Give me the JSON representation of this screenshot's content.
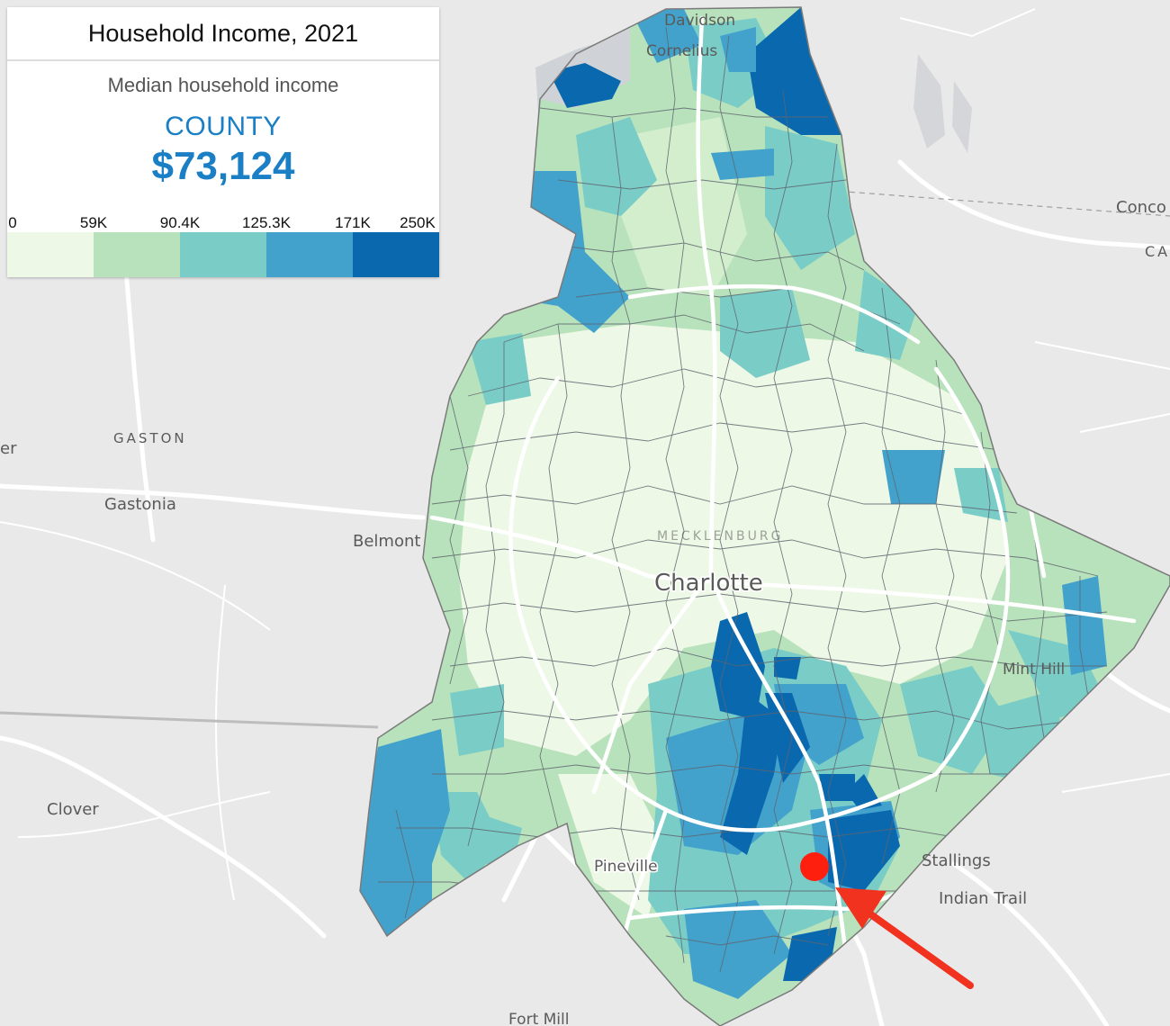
{
  "legend": {
    "title": "Household Income, 2021",
    "subtitle": "Median household income",
    "region": "COUNTY",
    "value": "$73,124",
    "scale_labels": [
      "0",
      "59K",
      "90.4K",
      "125.3K",
      "171K",
      "250K"
    ],
    "scale_colors": [
      "#eef8e6",
      "#b8e2bb",
      "#7accc7",
      "#42a2cc",
      "#0a68ae"
    ]
  },
  "colors": {
    "background": "#e9e9ea",
    "county_border": "#7a7a7a",
    "tract_line": "#5f6670",
    "road": "#ffffff",
    "water": "#cfd2d6",
    "marker": "#ff1f0f",
    "arrow": "#f0321e"
  },
  "places": {
    "davidson": "Davidson",
    "cornelius": "Cornelius",
    "concord": "Conco",
    "cabarrus": "CA",
    "gaston": "GASTON",
    "gastonia": "Gastonia",
    "belmont": "Belmont",
    "mecklenburg": "MECKLENBURG",
    "charlotte": "Charlotte",
    "mint_hill": "Mint Hill",
    "clover": "Clover",
    "pineville": "Pineville",
    "stallings": "Stallings",
    "indian_trail": "Indian Trail",
    "fort_mill": "Fort Mill",
    "edge_left": "er"
  },
  "marker": {
    "name": "location-marker"
  }
}
